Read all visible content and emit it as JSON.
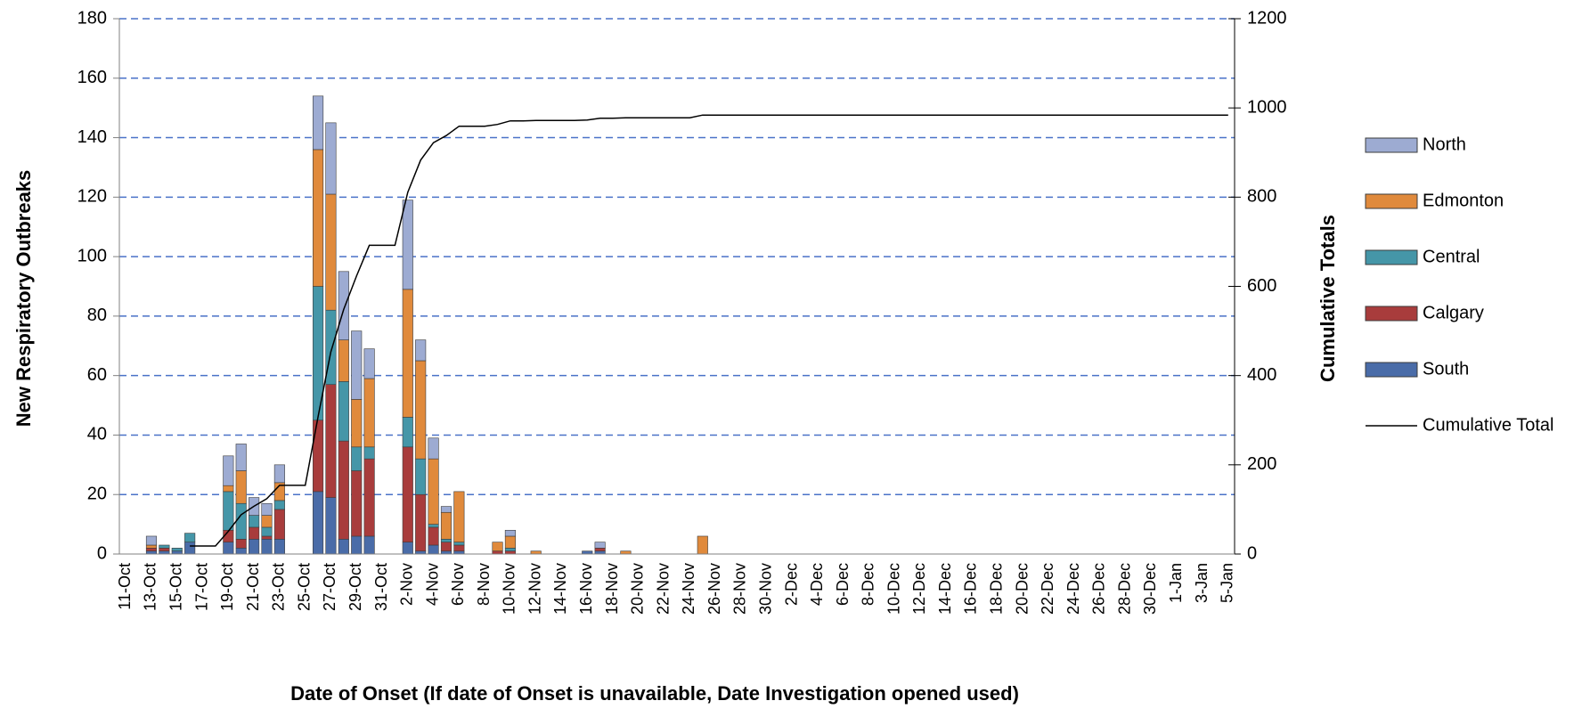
{
  "chart_data": {
    "type": "stacked_bar_line",
    "x_label": "Date of Onset (If date of Onset is unavailable, Date Investigation opened used)",
    "y_label": "New Respiratory Outbreaks",
    "y2_label": "Cumulative Totals",
    "categories": [
      "11-Oct",
      null,
      "13-Oct",
      null,
      "15-Oct",
      null,
      "17-Oct",
      null,
      "19-Oct",
      null,
      "21-Oct",
      null,
      "23-Oct",
      null,
      "25-Oct",
      null,
      "27-Oct",
      null,
      "29-Oct",
      null,
      "31-Oct",
      null,
      "2-Nov",
      null,
      "4-Nov",
      null,
      "6-Nov",
      null,
      "8-Nov",
      null,
      "10-Nov",
      null,
      "12-Nov",
      null,
      "14-Nov",
      null,
      "16-Nov",
      null,
      "18-Nov",
      null,
      "20-Nov",
      null,
      "22-Nov",
      null,
      "24-Nov",
      null,
      "26-Nov",
      null,
      "28-Nov",
      null,
      "30-Nov",
      null,
      "2-Dec",
      null,
      "4-Dec",
      null,
      "6-Dec",
      null,
      "8-Dec",
      null,
      "10-Dec",
      null,
      "12-Dec",
      null,
      "14-Dec",
      null,
      "16-Dec",
      null,
      "18-Dec",
      null,
      "20-Dec",
      null,
      "22-Dec",
      null,
      "24-Dec",
      null,
      "26-Dec",
      null,
      "28-Dec",
      null,
      "30-Dec",
      null,
      "1-Jan",
      null,
      "3-Jan",
      null,
      "5-Jan"
    ],
    "series": [
      {
        "name": "South",
        "color": "#4a6ca8",
        "values": [
          0,
          0,
          1,
          1,
          1,
          4,
          0,
          0,
          4,
          2,
          5,
          5,
          5,
          0,
          0,
          21,
          19,
          5,
          6,
          6,
          0,
          0,
          4,
          1,
          3,
          1,
          1,
          0,
          0,
          0,
          0,
          0,
          0,
          0,
          0,
          0,
          1,
          1,
          0,
          0,
          0,
          0,
          0,
          0,
          0,
          0,
          0,
          0,
          0,
          0,
          0,
          0,
          0,
          0,
          0,
          0,
          0,
          0,
          0,
          0,
          0,
          0,
          0,
          0,
          0,
          0,
          0,
          0,
          0,
          0,
          0,
          0,
          0,
          0,
          0,
          0,
          0,
          0,
          0,
          0,
          0,
          0,
          0,
          0,
          0,
          0,
          0
        ]
      },
      {
        "name": "Calgary",
        "color": "#a83c3c",
        "values": [
          0,
          0,
          1,
          1,
          0,
          0,
          0,
          0,
          4,
          3,
          4,
          1,
          10,
          0,
          0,
          24,
          38,
          33,
          22,
          26,
          0,
          0,
          32,
          19,
          6,
          3,
          2,
          0,
          0,
          1,
          1,
          0,
          0,
          0,
          0,
          0,
          0,
          1,
          0,
          0,
          0,
          0,
          0,
          0,
          0,
          0,
          0,
          0,
          0,
          0,
          0,
          0,
          0,
          0,
          0,
          0,
          0,
          0,
          0,
          0,
          0,
          0,
          0,
          0,
          0,
          0,
          0,
          0,
          0,
          0,
          0,
          0,
          0,
          0,
          0,
          0,
          0,
          0,
          0,
          0,
          0,
          0,
          0,
          0,
          0,
          0,
          0
        ]
      },
      {
        "name": "Central",
        "color": "#4596a8",
        "values": [
          0,
          0,
          0,
          1,
          1,
          3,
          0,
          0,
          13,
          12,
          4,
          3,
          3,
          0,
          0,
          45,
          25,
          20,
          8,
          4,
          0,
          0,
          10,
          12,
          1,
          1,
          1,
          0,
          0,
          0,
          1,
          0,
          0,
          0,
          0,
          0,
          0,
          0,
          0,
          0,
          0,
          0,
          0,
          0,
          0,
          0,
          0,
          0,
          0,
          0,
          0,
          0,
          0,
          0,
          0,
          0,
          0,
          0,
          0,
          0,
          0,
          0,
          0,
          0,
          0,
          0,
          0,
          0,
          0,
          0,
          0,
          0,
          0,
          0,
          0,
          0,
          0,
          0,
          0,
          0,
          0,
          0,
          0,
          0,
          0,
          0,
          0
        ]
      },
      {
        "name": "Edmonton",
        "color": "#e08a3c",
        "values": [
          0,
          0,
          1,
          0,
          0,
          0,
          0,
          0,
          2,
          11,
          0,
          4,
          6,
          0,
          0,
          46,
          39,
          14,
          16,
          23,
          0,
          0,
          43,
          33,
          22,
          9,
          17,
          0,
          0,
          3,
          4,
          0,
          1,
          0,
          0,
          0,
          0,
          0,
          0,
          1,
          0,
          0,
          0,
          0,
          0,
          6,
          0,
          0,
          0,
          0,
          0,
          0,
          0,
          0,
          0,
          0,
          0,
          0,
          0,
          0,
          0,
          0,
          0,
          0,
          0,
          0,
          0,
          0,
          0,
          0,
          0,
          0,
          0,
          0,
          0,
          0,
          0,
          0,
          0,
          0,
          0,
          0,
          0,
          0,
          0,
          0,
          0
        ]
      },
      {
        "name": "North",
        "color": "#9dabd2",
        "values": [
          0,
          0,
          3,
          0,
          0,
          0,
          0,
          0,
          10,
          9,
          6,
          4,
          6,
          0,
          0,
          18,
          24,
          23,
          23,
          10,
          0,
          0,
          30,
          7,
          7,
          2,
          0,
          0,
          0,
          0,
          2,
          0,
          0,
          0,
          0,
          0,
          0,
          2,
          0,
          0,
          0,
          0,
          0,
          0,
          0,
          0,
          0,
          0,
          0,
          0,
          0,
          0,
          0,
          0,
          0,
          0,
          0,
          0,
          0,
          0,
          0,
          0,
          0,
          0,
          0,
          0,
          0,
          0,
          0,
          0,
          0,
          0,
          0,
          0,
          0,
          0,
          0,
          0,
          0,
          0,
          0,
          0,
          0,
          0,
          0,
          0,
          0
        ]
      },
      {
        "name": "Cumulative Total",
        "color": "#000000",
        "type": "line",
        "axis": "y2",
        "values": [
          null,
          null,
          null,
          null,
          null,
          18,
          18,
          18,
          51,
          88,
          107,
          124,
          154,
          154,
          154,
          308,
          453,
          548,
          623,
          692,
          692,
          692,
          811,
          883,
          922,
          938,
          959,
          959,
          959,
          963,
          971,
          971,
          972,
          972,
          972,
          972,
          973,
          977,
          977,
          978,
          978,
          978,
          978,
          978,
          978,
          984,
          984,
          984,
          984,
          984,
          984,
          984,
          984,
          984,
          984,
          984,
          984,
          984,
          984,
          984,
          984,
          984,
          984,
          984,
          984,
          984,
          984,
          984,
          984,
          984,
          984,
          984,
          984,
          984,
          984,
          984,
          984,
          984,
          984,
          984,
          984,
          984,
          984,
          984,
          984,
          984,
          984
        ]
      }
    ],
    "ylim": [
      0,
      180
    ],
    "yticks": [
      0,
      20,
      40,
      60,
      80,
      100,
      120,
      140,
      160,
      180
    ],
    "y2lim": [
      0,
      1200
    ],
    "y2ticks": [
      0,
      200,
      400,
      600,
      800,
      1000,
      1200
    ],
    "grid": true,
    "legend": "right"
  }
}
